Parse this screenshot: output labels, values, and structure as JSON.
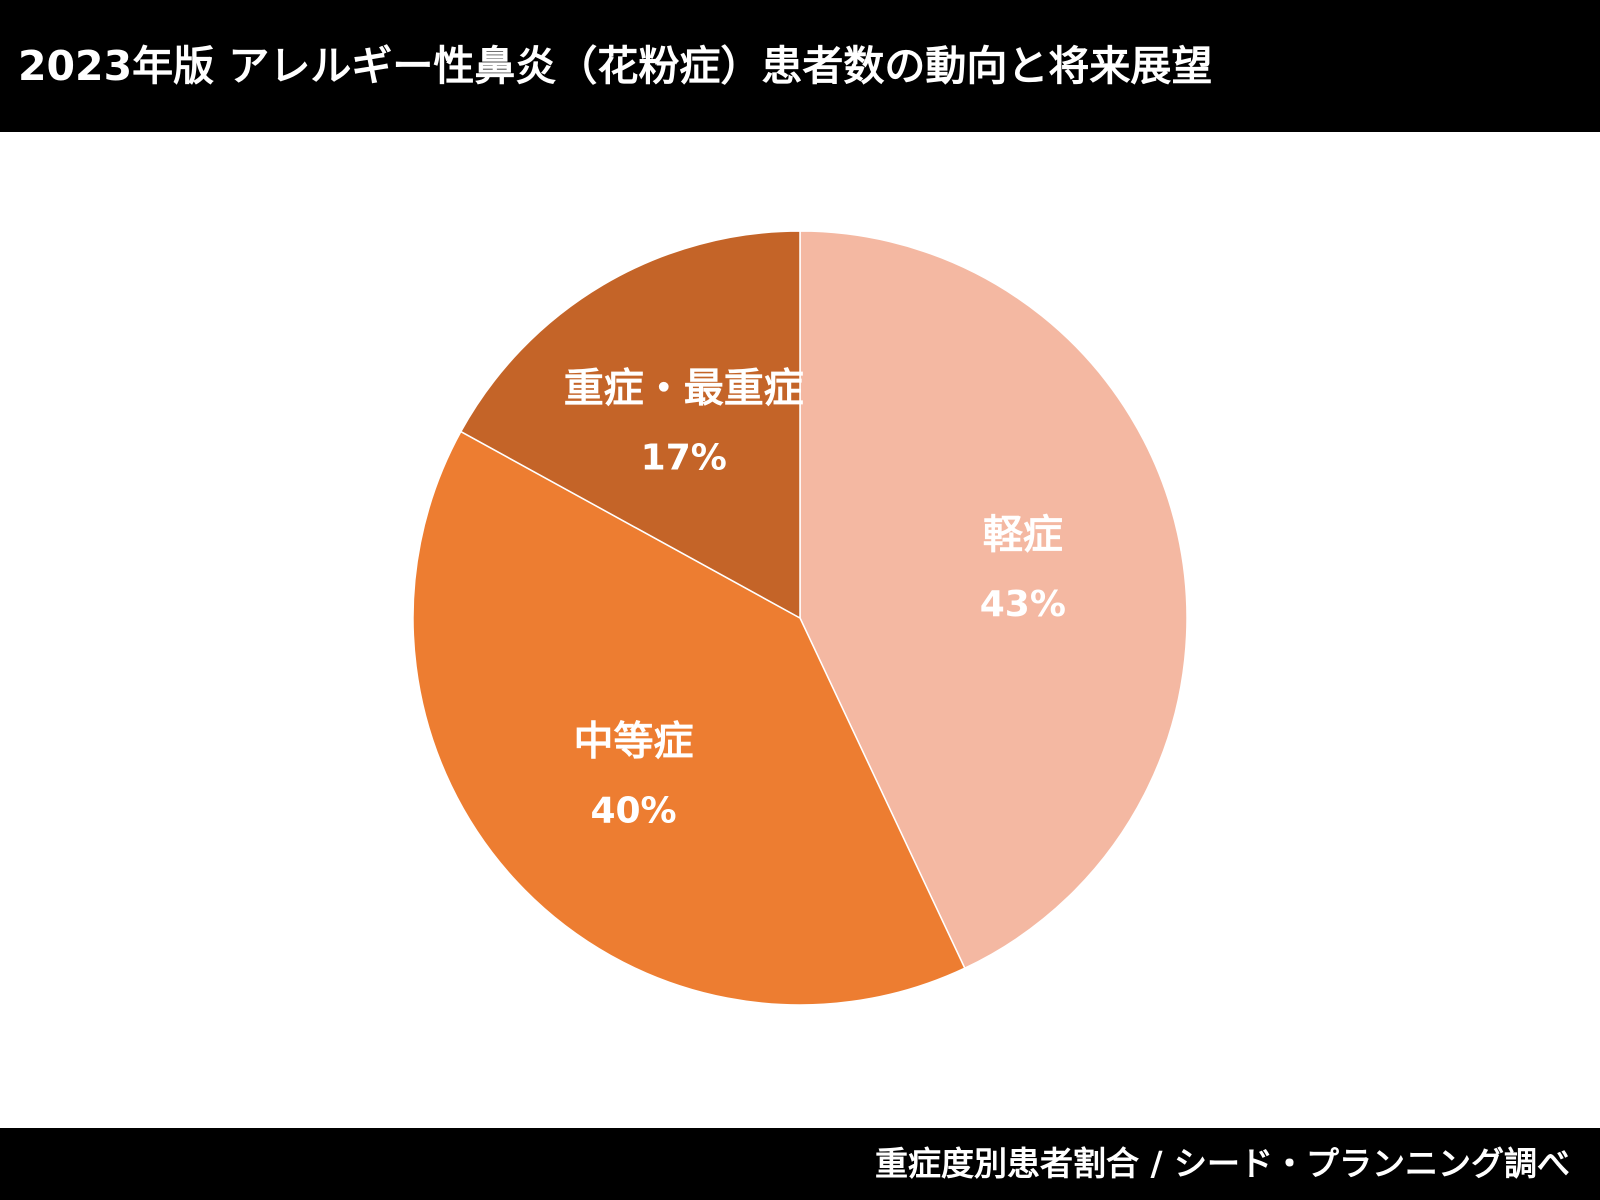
{
  "header": {
    "title": "2023年版 アレルギー性鼻炎（花粉症）患者数の動向と将来展望"
  },
  "footer": {
    "caption": "重症度別患者割合 / シード・プランニング調べ"
  },
  "chart_data": {
    "type": "pie",
    "start_angle_deg": 0,
    "direction": "clockwise",
    "slices": [
      {
        "label": "軽症",
        "value": 43,
        "value_label": "43%",
        "color": "#F4B8A2"
      },
      {
        "label": "中等症",
        "value": 40,
        "value_label": "40%",
        "color": "#ED7D31"
      },
      {
        "label": "重症・最重症",
        "value": 17,
        "value_label": "17%",
        "color": "#C46428"
      }
    ]
  }
}
